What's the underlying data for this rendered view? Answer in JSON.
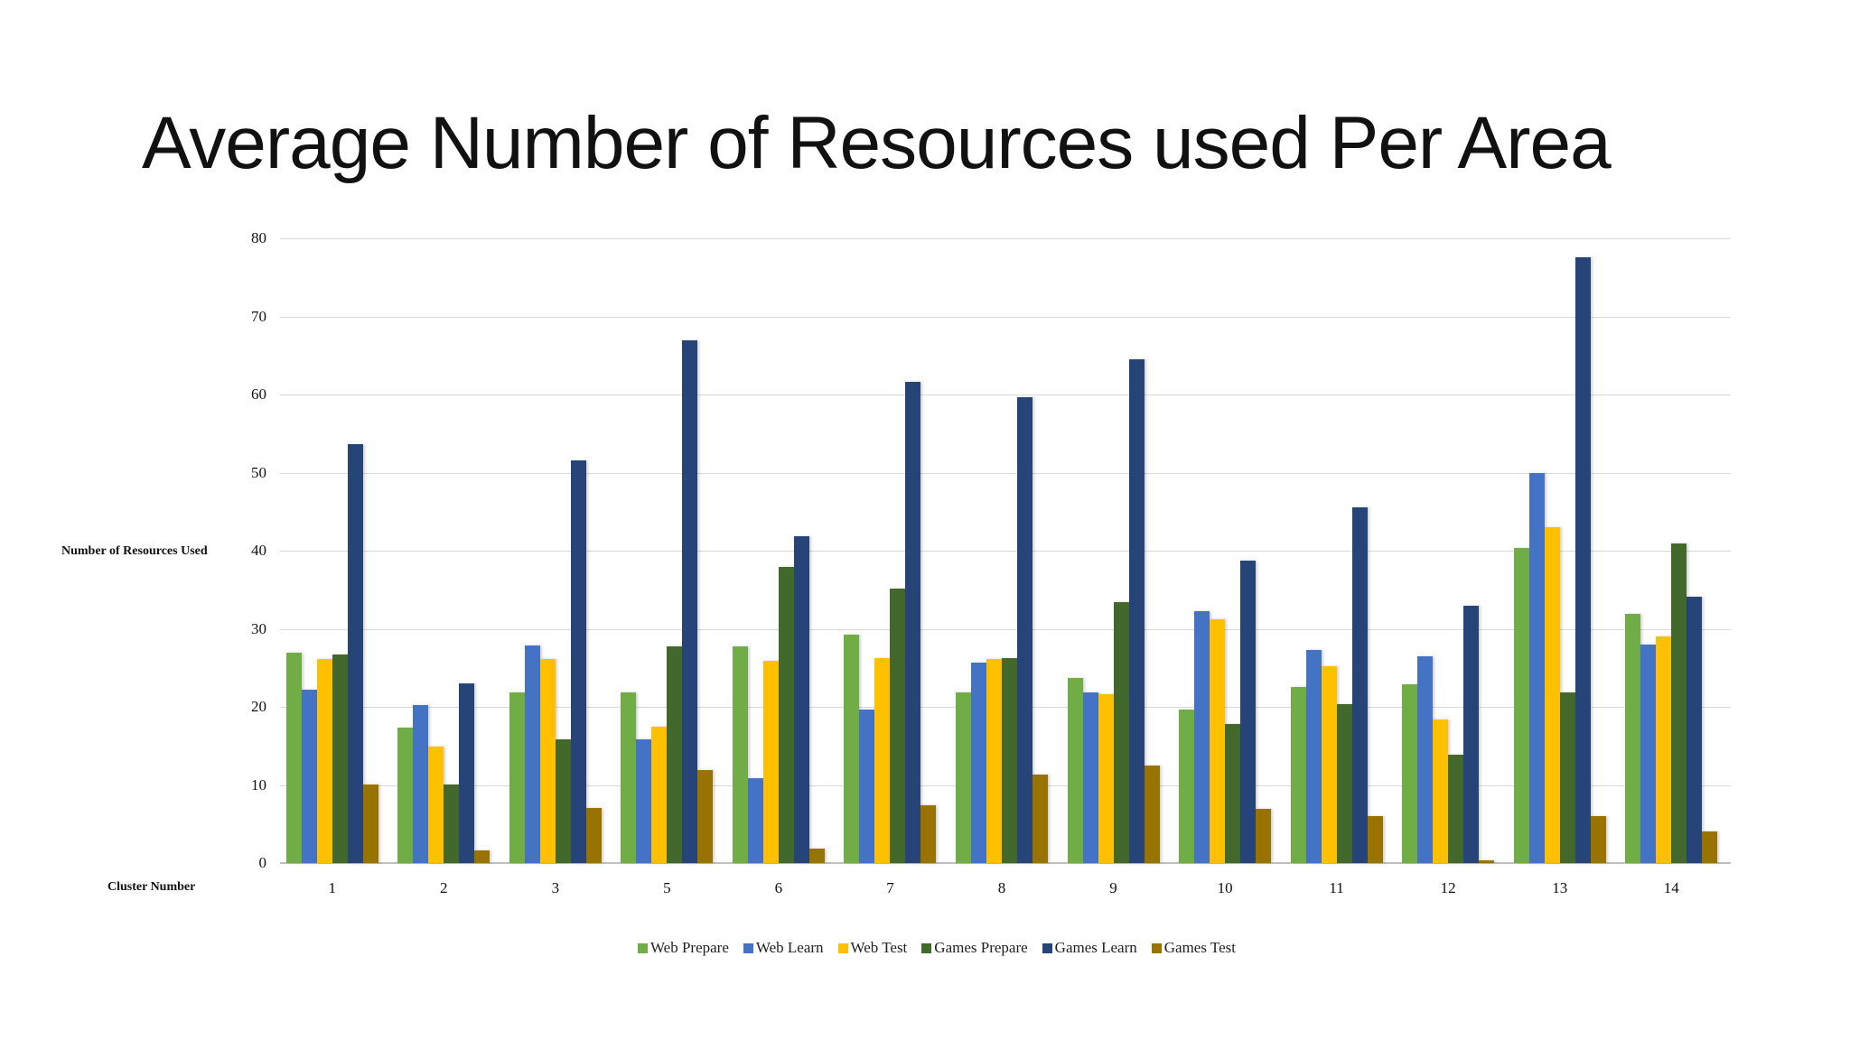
{
  "slide": {
    "title": "Average Number of Resources used Per Area"
  },
  "chart_data": {
    "type": "bar",
    "title": "Average Number of Resources used Per Area",
    "xlabel": "Cluster Number",
    "ylabel": "Number of Resources  Used",
    "ylim": [
      0,
      80
    ],
    "yticks": [
      0,
      10,
      20,
      30,
      40,
      50,
      60,
      70,
      80
    ],
    "grid": true,
    "legend_position": "bottom",
    "categories": [
      "1",
      "2",
      "3",
      "5",
      "6",
      "7",
      "8",
      "9",
      "10",
      "11",
      "12",
      "13",
      "14"
    ],
    "series": [
      {
        "name": "Web Prepare",
        "color": "#70ad47",
        "values": [
          26.9,
          17.3,
          21.8,
          21.9,
          27.8,
          29.2,
          21.9,
          23.7,
          19.6,
          22.6,
          22.9,
          40.4,
          31.9
        ]
      },
      {
        "name": "Web Learn",
        "color": "#4472c4",
        "values": [
          22.2,
          20.2,
          27.9,
          15.8,
          10.9,
          19.6,
          25.7,
          21.9,
          32.2,
          27.3,
          26.5,
          50.0,
          28.0
        ]
      },
      {
        "name": "Web Test",
        "color": "#ffc000",
        "values": [
          26.1,
          14.9,
          26.1,
          17.5,
          25.9,
          26.3,
          26.1,
          21.6,
          31.2,
          25.2,
          18.4,
          43.0,
          29.0
        ]
      },
      {
        "name": "Games Prepare",
        "color": "#43682b",
        "values": [
          26.7,
          10.1,
          15.8,
          27.8,
          37.9,
          35.2,
          26.3,
          33.4,
          17.8,
          20.4,
          13.9,
          21.9,
          40.9
        ]
      },
      {
        "name": "Games Learn",
        "color": "#264478",
        "values": [
          53.6,
          23.0,
          51.6,
          66.9,
          41.9,
          61.6,
          59.6,
          64.5,
          38.7,
          45.5,
          32.9,
          77.6,
          34.1
        ]
      },
      {
        "name": "Games Test",
        "color": "#997300",
        "values": [
          10.1,
          1.6,
          7.1,
          11.9,
          1.9,
          7.4,
          11.3,
          12.5,
          6.9,
          6.0,
          0.4,
          6.0,
          4.0
        ]
      }
    ]
  }
}
